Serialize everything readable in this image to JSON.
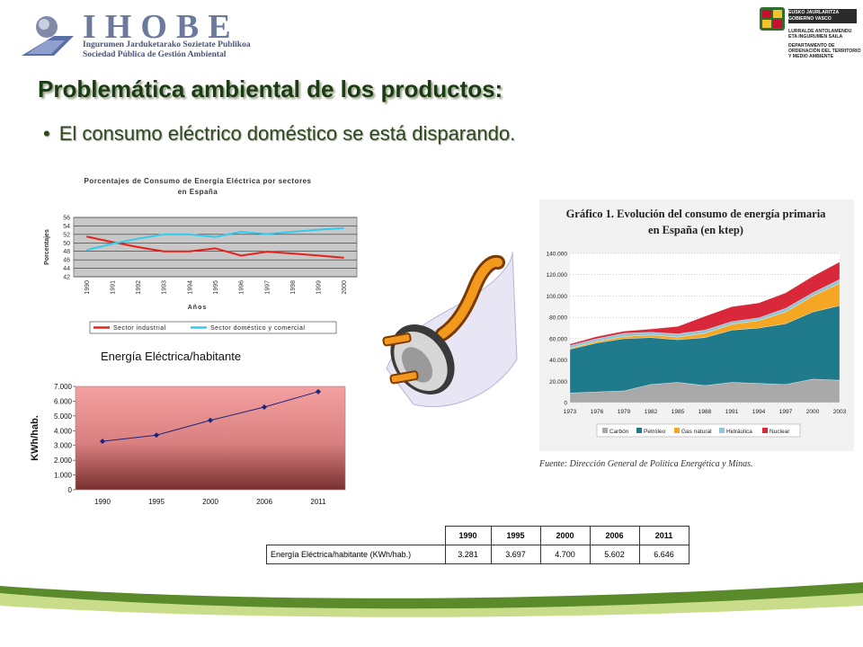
{
  "header": {
    "ihobe_name": "IHOBE",
    "ihobe_sub1": "Ingurumen Jarduketarako Sozietate Publikoa",
    "ihobe_sub2": "Sociedad Pública de Gestión Ambiental",
    "gv_line1": "EUSKO JAURLARITZA",
    "gv_line2": "GOBIERNO VASCO",
    "gv_line3": "LURRALDE ANTOLAMENDU",
    "gv_line4": "ETA INGURUMEN SAILA",
    "gv_line5": "DEPARTAMENTO DE",
    "gv_line6": "ORDENACIÓN DEL TERRITORIO",
    "gv_line7": "Y MEDIO AMBIENTE"
  },
  "title": "Problemática ambiental de los productos:",
  "bullet": "El consumo eléctrico doméstico se está disparando.",
  "bullet_symbol": "•",
  "colors": {
    "title": "#1a3c12",
    "footer_green": "#5a8a2a",
    "footer_light": "#c8dc8a"
  },
  "chart_data": [
    {
      "type": "line",
      "title": "Porcentajes de Consumo de Energía Eléctrica por sectores en España",
      "title_line1": "Porcentajes de Consumo de Energía Eléctrica por sectores",
      "title_line2": "en España",
      "xlabel": "Años",
      "ylabel": "Porcentajes",
      "x": [
        "1990",
        "1991",
        "1992",
        "1993",
        "1994",
        "1995",
        "1996",
        "1997",
        "1998",
        "1999",
        "2000"
      ],
      "ylim": [
        42,
        56
      ],
      "yticks": [
        "56",
        "54",
        "52",
        "50",
        "48",
        "46",
        "44",
        "42"
      ],
      "series": [
        {
          "name": "Sector industrial",
          "color": "#e8201a",
          "values": [
            51.5,
            50.2,
            49.0,
            48.0,
            48.0,
            48.7,
            47.0,
            47.9,
            47.5,
            47.0,
            46.5
          ]
        },
        {
          "name": "Sector doméstico y comercial",
          "color": "#33ccee",
          "values": [
            48.3,
            49.8,
            51.0,
            52.0,
            52.0,
            51.4,
            52.6,
            52.1,
            52.6,
            53.1,
            53.5
          ]
        }
      ],
      "grid": true,
      "legend": "bottom"
    },
    {
      "type": "line",
      "title": "Energía Eléctrica/habitante",
      "ylabel": "KWh/hab.",
      "xlabel": "",
      "categories": [
        "1990",
        "1995",
        "2000",
        "2006",
        "2011"
      ],
      "values": [
        3281,
        3697,
        4700,
        5602,
        6646
      ],
      "ylim": [
        0,
        7000
      ],
      "yticks": [
        "7.000",
        "6.000",
        "5.000",
        "4.000",
        "3.000",
        "2.000",
        "1.000",
        "0"
      ],
      "color": "#1a237e"
    },
    {
      "type": "area",
      "title": "Gráfico 1. Evolución del consumo de energía primaria en España (en ktep)",
      "title_line1": "Gráfico 1. Evolución del consumo de energía primaria",
      "title_line2": "en España (en ktep)",
      "source": "Fuente: Dirección General de Política Energética y Minas.",
      "x": [
        "1973",
        "1976",
        "1979",
        "1982",
        "1985",
        "1988",
        "1991",
        "1994",
        "1997",
        "2000",
        "2003"
      ],
      "ylim": [
        0,
        140000
      ],
      "yticks": [
        "140.000",
        "120.000",
        "100.000",
        "80.000",
        "60.000",
        "40.000",
        "20.000",
        "0"
      ],
      "series": [
        {
          "name": "Carbón",
          "color": "#a9a9a9",
          "values": [
            9000,
            10000,
            11000,
            17000,
            19000,
            16000,
            19000,
            18000,
            17000,
            22000,
            21000
          ]
        },
        {
          "name": "Petróleo",
          "color": "#1f7a8c",
          "values": [
            41000,
            46000,
            49000,
            44000,
            40000,
            45000,
            49000,
            52000,
            57000,
            63000,
            70000
          ]
        },
        {
          "name": "Gas natural",
          "color": "#f5a623",
          "values": [
            1000,
            1500,
            2000,
            2500,
            2500,
            4000,
            5500,
            7000,
            11000,
            15000,
            21000
          ]
        },
        {
          "name": "Hidráulica",
          "color": "#8ec6d8",
          "values": [
            2500,
            2500,
            3000,
            2500,
            3000,
            3000,
            2500,
            2500,
            3500,
            3000,
            3500
          ]
        },
        {
          "name": "Nuclear",
          "color": "#d8283a",
          "values": [
            1500,
            2000,
            2000,
            3000,
            7000,
            13000,
            14000,
            14000,
            14500,
            15500,
            16500
          ]
        }
      ],
      "legend": "bottom"
    }
  ],
  "table": {
    "headers": [
      "1990",
      "1995",
      "2000",
      "2006",
      "2011"
    ],
    "row_label": "Energía Eléctrica/habitante (KWh/hab.)",
    "values": [
      "3.281",
      "3.697",
      "4.700",
      "5.602",
      "6.646"
    ]
  }
}
